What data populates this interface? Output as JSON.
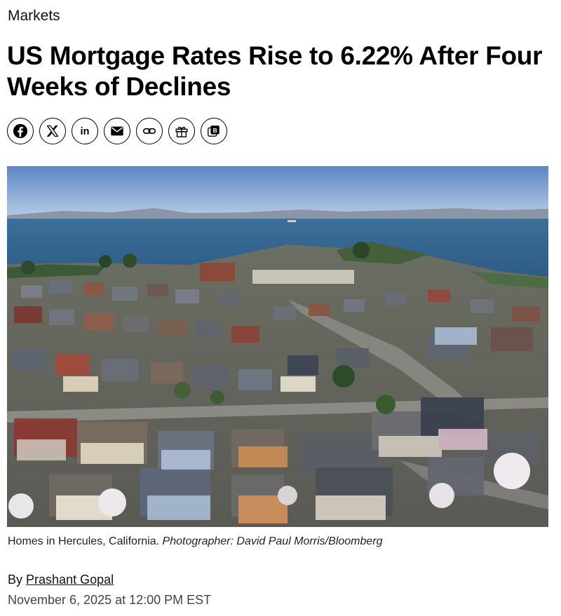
{
  "article": {
    "section": "Markets",
    "headline": "US Mortgage Rates Rise to 6.22% After Four Weeks of Declines",
    "share_buttons": [
      {
        "icon": "facebook-icon"
      },
      {
        "icon": "x-icon"
      },
      {
        "icon": "linkedin-icon"
      },
      {
        "icon": "email-icon"
      },
      {
        "icon": "link-icon"
      },
      {
        "icon": "gift-icon"
      },
      {
        "icon": "bloomberg-terminal-icon"
      }
    ],
    "caption_text": "Homes in Hercules, California.",
    "caption_credit": "Photographer: David Paul Morris/Bloomberg",
    "byline_prefix": "By",
    "author": "Prashant Gopal",
    "published": "November 6, 2025 at 12:00 PM EST"
  }
}
